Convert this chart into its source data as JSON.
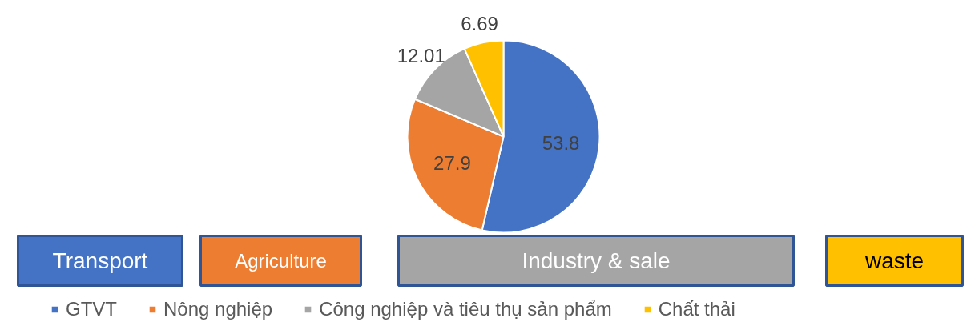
{
  "chart_data": {
    "type": "pie",
    "categories": [
      "GTVT",
      "Nông nghiệp",
      "Công nghiệp và tiêu thụ sản phẩm",
      "Chất thải"
    ],
    "values": [
      53.8,
      27.9,
      12.01,
      6.69
    ],
    "colors": [
      "#4472c4",
      "#ed7d31",
      "#a5a5a5",
      "#ffc000"
    ],
    "data_labels": true,
    "legend": "bottom",
    "annotations": [
      "Transport",
      "Agriculture",
      "Industry & sale",
      "waste"
    ]
  }
}
